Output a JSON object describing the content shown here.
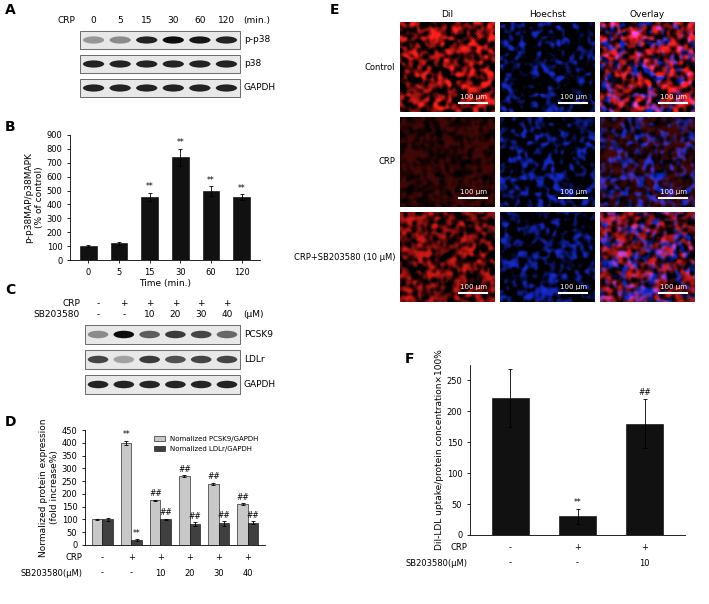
{
  "panel_labels": [
    "A",
    "B",
    "C",
    "D",
    "E",
    "F"
  ],
  "blot_A": {
    "headers": [
      {
        "label": "CRP",
        "lanes": [
          "0",
          "5",
          "15",
          "30",
          "60",
          "120"
        ],
        "unit": "(min.)"
      }
    ],
    "bands": [
      {
        "name": "p-p38",
        "intensity": [
          0.35,
          0.4,
          0.85,
          0.95,
          0.9,
          0.85
        ]
      },
      {
        "name": "p38",
        "intensity": [
          0.85,
          0.85,
          0.85,
          0.85,
          0.85,
          0.85
        ]
      },
      {
        "name": "GAPDH",
        "intensity": [
          0.85,
          0.85,
          0.85,
          0.85,
          0.85,
          0.85
        ]
      }
    ]
  },
  "blot_C": {
    "headers": [
      {
        "label": "CRP",
        "lanes": [
          "-",
          "+",
          "+",
          "+",
          "+",
          "+"
        ]
      },
      {
        "label": "SB203580",
        "lanes": [
          "-",
          "-",
          "10",
          "20",
          "30",
          "40"
        ],
        "unit": "(μM)"
      }
    ],
    "bands": [
      {
        "name": "PCSK9",
        "intensity": [
          0.4,
          0.95,
          0.6,
          0.75,
          0.7,
          0.55
        ]
      },
      {
        "name": "LDLr",
        "intensity": [
          0.7,
          0.3,
          0.75,
          0.65,
          0.7,
          0.7
        ]
      },
      {
        "name": "GAPDH",
        "intensity": [
          0.85,
          0.85,
          0.85,
          0.85,
          0.85,
          0.85
        ]
      }
    ]
  },
  "chart_data": [
    {
      "type": "bar",
      "ylabel": "p-p38MAP/p38MAPK\n(% of control)",
      "xlabel": "Time (min.)",
      "categories": [
        "0",
        "5",
        "15",
        "30",
        "60",
        "120"
      ],
      "values": [
        100,
        120,
        455,
        740,
        495,
        455
      ],
      "errors": [
        5,
        12,
        30,
        60,
        35,
        20
      ],
      "significance": [
        null,
        null,
        "**",
        "**",
        "**",
        "**"
      ],
      "color": "#111111",
      "ylim": [
        0,
        900
      ],
      "yticks": [
        0,
        100,
        200,
        300,
        400,
        500,
        600,
        700,
        800,
        900
      ]
    },
    {
      "type": "bar",
      "ylabel": "Normalized protein expression\n(fold increase%)",
      "conditions": [
        {
          "label": "CRP",
          "values": [
            "-",
            "+",
            "+",
            "+",
            "+",
            "+"
          ]
        },
        {
          "label": "SB203580(μM)",
          "values": [
            "-",
            "-",
            "10",
            "20",
            "30",
            "40"
          ]
        }
      ],
      "series": [
        {
          "name": "Nomalized PCSK9/GAPDH",
          "color": "#c8c8c8",
          "values": [
            100,
            400,
            175,
            270,
            240,
            160
          ],
          "errors": [
            2,
            8,
            3,
            4,
            4,
            3
          ],
          "significance": [
            null,
            "**",
            "##",
            "##",
            "##",
            "##"
          ]
        },
        {
          "name": "Nomalized LDLr/GAPDH",
          "color": "#404040",
          "values": [
            100,
            18,
            100,
            82,
            85,
            87
          ],
          "errors": [
            5,
            4,
            3,
            8,
            9,
            5
          ],
          "significance": [
            null,
            "**",
            "##",
            "##",
            "##",
            "##"
          ]
        }
      ],
      "legend": "upper right",
      "ylim": [
        0,
        450
      ],
      "yticks": [
        0,
        50,
        100,
        150,
        200,
        250,
        300,
        350,
        400,
        450
      ],
      "tick_labels": "y"
    },
    {
      "type": "bar",
      "ylabel": "DiI-LDL uptake/protein concentration×100%",
      "conditions": [
        {
          "label": "CRP",
          "values": [
            "-",
            "+",
            "+"
          ]
        },
        {
          "label": "SB203580(μM)",
          "values": [
            "-",
            "-",
            "10"
          ]
        }
      ],
      "values": [
        222,
        30,
        180
      ],
      "errors": [
        47,
        12,
        40
      ],
      "significance": [
        null,
        "**",
        "##"
      ],
      "color": "#111111",
      "ylim": [
        0,
        275
      ],
      "yticks": [
        0,
        50,
        100,
        150,
        200,
        250
      ],
      "tick_labels": "y"
    }
  ],
  "image_E": {
    "columns": [
      "DiI",
      "Hoechst",
      "Overlay"
    ],
    "rows": [
      {
        "label": "Control",
        "dii_intensity": 1.0,
        "hoechst_intensity": 0.8
      },
      {
        "label": "CRP",
        "dii_intensity": 0.25,
        "hoechst_intensity": 0.8
      },
      {
        "label": "CRP+SB203580 (10 μM)",
        "dii_intensity": 0.8,
        "hoechst_intensity": 0.8
      }
    ],
    "scale_bar": "100 μm"
  }
}
